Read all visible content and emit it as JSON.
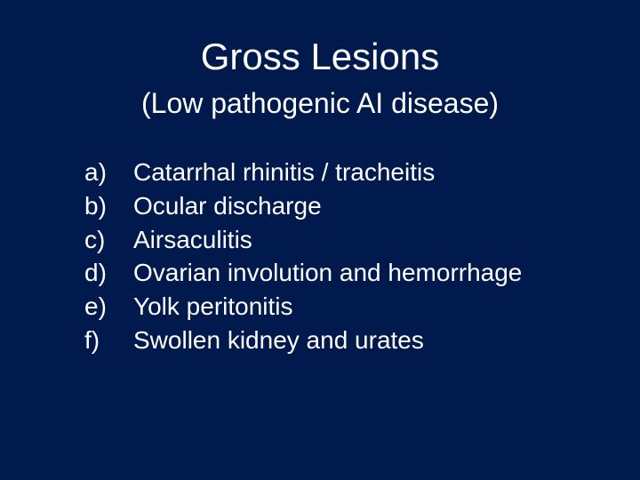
{
  "colors": {
    "background": "#001a4d",
    "text": "#ffffff"
  },
  "typography": {
    "font_family": "Arial",
    "title_fontsize": 42,
    "subtitle_fontsize": 32,
    "body_fontsize": 28
  },
  "title": "Gross Lesions",
  "subtitle": "(Low pathogenic AI disease)",
  "items": [
    {
      "marker": "a)",
      "text": "Catarrhal rhinitis / tracheitis"
    },
    {
      "marker": "b)",
      "text": "Ocular discharge"
    },
    {
      "marker": "c)",
      "text": "Airsaculitis"
    },
    {
      "marker": "d)",
      "text": "Ovarian involution and hemorrhage"
    },
    {
      "marker": "e)",
      "text": "Yolk peritonitis"
    },
    {
      "marker": "f)",
      "text": "Swollen kidney and urates"
    }
  ]
}
